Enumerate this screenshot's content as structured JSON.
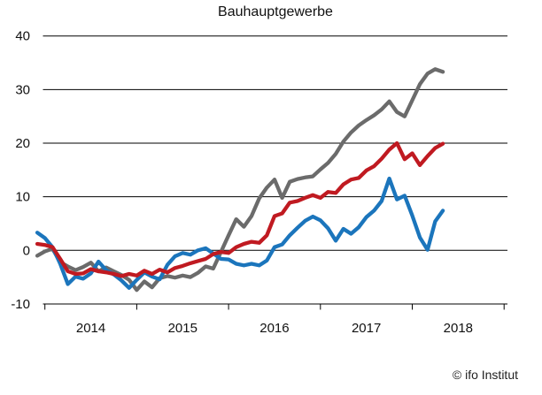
{
  "title": "Bauhauptgewerbe",
  "footer": {
    "copyright": "© ifo Institut"
  },
  "colors": {
    "grid": "#000000",
    "axis": "#000000",
    "text": "#111111",
    "series_gray": "#6B6B6B",
    "series_red": "#C01A21",
    "series_blue": "#1B75BC"
  },
  "chart_data": {
    "type": "line",
    "title": "Bauhauptgewerbe",
    "xlabel": "",
    "ylabel": "",
    "x_tick_labels": [
      "2014",
      "2015",
      "2016",
      "2017",
      "2018"
    ],
    "x_range": "monthly points, Dec 2013 through May 2018",
    "points_per_month": 1,
    "y_ticks": [
      40,
      30,
      20,
      10,
      0,
      -10
    ],
    "ylim": [
      -10,
      40
    ],
    "grid": "horizontal gridlines at every 10 units",
    "legend": "none",
    "annotation": "© ifo Institut",
    "series": [
      {
        "name": "gray-line",
        "color": "#6B6B6B",
        "values": [
          -1.0,
          -0.2,
          0.3,
          -2.2,
          -3.0,
          -3.7,
          -3.1,
          -2.3,
          -3.9,
          -3.2,
          -3.9,
          -4.6,
          -5.5,
          -7.4,
          -5.8,
          -6.9,
          -5.2,
          -4.8,
          -5.1,
          -4.7,
          -5.0,
          -4.2,
          -3.0,
          -3.4,
          -0.3,
          2.8,
          5.8,
          4.4,
          6.4,
          9.7,
          11.7,
          13.2,
          9.8,
          12.8,
          13.3,
          13.6,
          13.8,
          15.1,
          16.3,
          18.0,
          20.3,
          22.0,
          23.3,
          24.3,
          25.2,
          26.3,
          27.8,
          25.8,
          25.0,
          28.0,
          31.0,
          33.0,
          33.8,
          33.3
        ]
      },
      {
        "name": "blue-line",
        "color": "#1B75BC",
        "values": [
          3.3,
          2.3,
          0.6,
          -2.5,
          -6.3,
          -4.9,
          -5.3,
          -4.3,
          -2.1,
          -3.7,
          -4.5,
          -5.6,
          -7.0,
          -5.5,
          -4.1,
          -4.9,
          -5.4,
          -2.7,
          -1.1,
          -0.5,
          -0.8,
          0.0,
          0.4,
          -0.6,
          -1.6,
          -1.7,
          -2.5,
          -2.8,
          -2.5,
          -2.8,
          -1.9,
          0.6,
          1.1,
          2.8,
          4.2,
          5.5,
          6.3,
          5.6,
          4.1,
          1.8,
          4.0,
          3.1,
          4.3,
          6.2,
          7.4,
          9.2,
          13.4,
          9.5,
          10.2,
          6.5,
          2.4,
          0.1,
          5.4,
          7.4
        ]
      },
      {
        "name": "red-line",
        "color": "#C01A21",
        "values": [
          1.2,
          1.0,
          0.6,
          -1.6,
          -3.9,
          -4.4,
          -4.3,
          -3.5,
          -3.9,
          -4.1,
          -4.4,
          -4.8,
          -4.4,
          -4.7,
          -3.8,
          -4.4,
          -3.6,
          -4.1,
          -3.3,
          -2.9,
          -2.4,
          -2.0,
          -1.6,
          -0.7,
          -0.3,
          -0.5,
          0.6,
          1.2,
          1.6,
          1.4,
          2.8,
          6.4,
          6.9,
          8.9,
          9.2,
          9.8,
          10.3,
          9.8,
          10.9,
          10.7,
          12.3,
          13.2,
          13.5,
          14.9,
          15.7,
          17.1,
          18.8,
          20.0,
          17.0,
          18.1,
          15.9,
          17.6,
          19.1,
          19.9
        ]
      }
    ]
  }
}
